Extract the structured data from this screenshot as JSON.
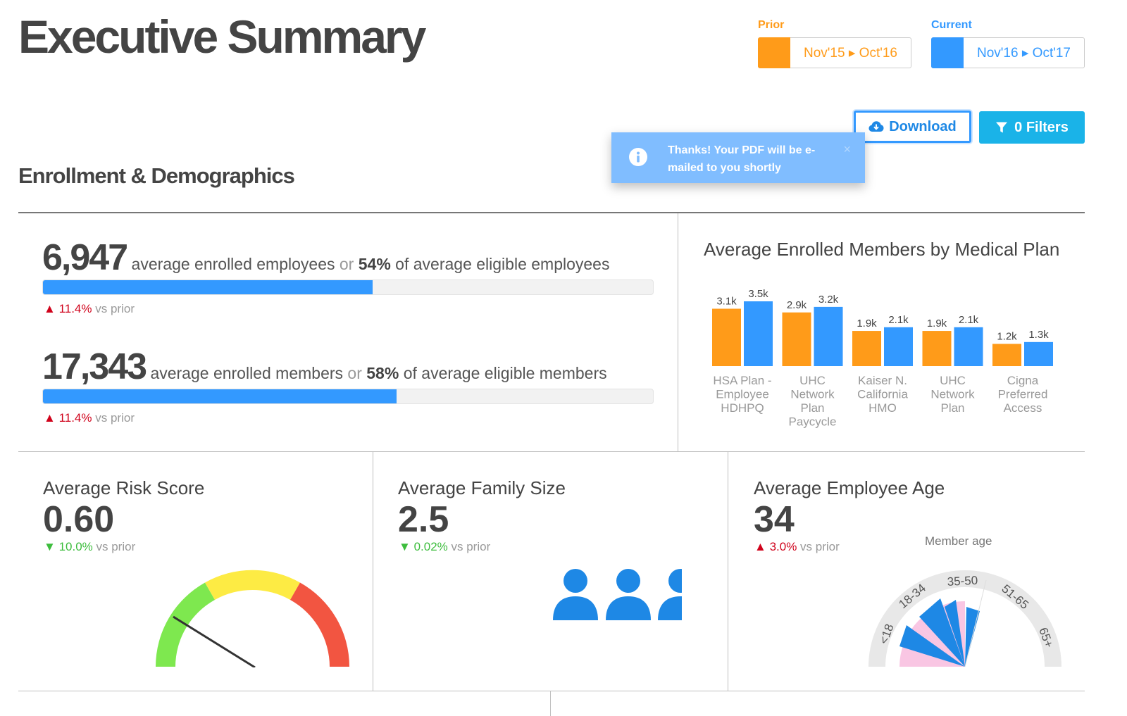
{
  "page": {
    "title": "Executive Summary"
  },
  "periods": {
    "prior": {
      "label": "Prior",
      "range": "Nov'15 ▸ Oct'16",
      "color": "#ff9b19"
    },
    "current": {
      "label": "Current",
      "range": "Nov'16 ▸ Oct'17",
      "color": "#3399ff"
    }
  },
  "toolbar": {
    "download_label": "Download",
    "filters_label": "0 Filters"
  },
  "toast": {
    "message": "Thanks! Your PDF will be e-mailed to you shortly",
    "close": "×"
  },
  "section": {
    "title": "Enrollment & Demographics"
  },
  "enrollment": {
    "employees": {
      "value": "6,947",
      "text_before": "average enrolled employees",
      "or": "or",
      "pct": "54%",
      "text_after": "of average eligible employees",
      "fill_fraction": 0.54,
      "delta_arrow": "▲",
      "delta_value": "11.4%",
      "delta_text": "vs prior"
    },
    "members": {
      "value": "17,343",
      "text_before": "average enrolled members",
      "or": "or",
      "pct": "58%",
      "text_after": "of average eligible members",
      "fill_fraction": 0.58,
      "delta_arrow": "▲",
      "delta_value": "11.4%",
      "delta_text": "vs prior"
    }
  },
  "chart_data": {
    "type": "bar",
    "title": "Average Enrolled Members by Medical Plan",
    "categories": [
      [
        "HSA Plan -",
        "Employee",
        "HDHPQ"
      ],
      [
        "UHC",
        "Network",
        "Plan",
        "Paycycle"
      ],
      [
        "Kaiser N.",
        "California",
        "HMO"
      ],
      [
        "UHC",
        "Network",
        "Plan"
      ],
      [
        "Cigna",
        "Preferred",
        "Access"
      ]
    ],
    "series": [
      {
        "values": [
          3.1,
          2.9,
          1.9,
          1.9,
          1.2
        ],
        "labels": [
          "3.1k",
          "2.9k",
          "1.9k",
          "1.9k",
          "1.2k"
        ],
        "color": "#ff9b19"
      },
      {
        "values": [
          3.5,
          3.2,
          2.1,
          2.1,
          1.3
        ],
        "labels": [
          "3.5k",
          "3.2k",
          "2.1k",
          "2.1k",
          "1.3k"
        ],
        "color": "#3399ff"
      }
    ],
    "ylim": [
      0,
      3.5
    ],
    "grid": false,
    "legend": "none"
  },
  "cards": {
    "risk": {
      "title": "Average Risk Score",
      "value": "0.60",
      "delta_arrow": "▼",
      "delta_value": "10.0%",
      "delta_text": "vs prior",
      "gauge_colors": [
        "#7ee84f",
        "#fdeb44",
        "#f25541"
      ]
    },
    "family": {
      "title": "Average Family Size",
      "value": "2.5",
      "delta_arrow": "▼",
      "delta_value": "0.02%",
      "delta_text": "vs prior",
      "icon": "person-icon"
    },
    "age": {
      "title": "Average Employee Age",
      "value": "34",
      "delta_arrow": "▲",
      "delta_value": "3.0%",
      "delta_text": "vs prior",
      "chart_label": "Member age",
      "age_bins": [
        "<18",
        "18-34",
        "35-50",
        "51-65",
        "65+"
      ]
    }
  }
}
